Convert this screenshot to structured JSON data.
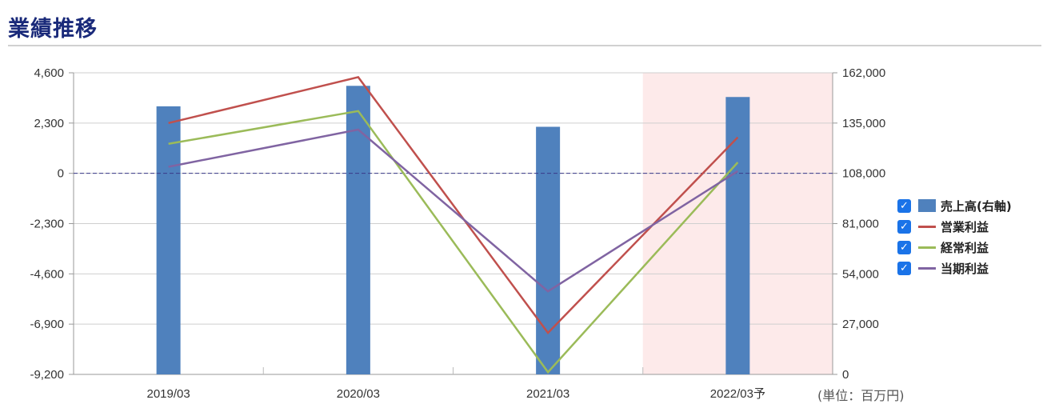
{
  "title": "業績推移",
  "unit_label": "(単位：百万円)",
  "colors": {
    "bar": "#4f81bd",
    "operating": "#c0504d",
    "ordinary": "#9bbb59",
    "net": "#8064a2",
    "forecast_band": "#fdeaea",
    "zero_line": "#3a3a8a",
    "checkbox": "#1a73e8"
  },
  "legend": [
    {
      "label": "売上高(右軸)",
      "swatch": "bar",
      "checked": true
    },
    {
      "label": "営業利益",
      "swatch": "operating",
      "checked": true
    },
    {
      "label": "経常利益",
      "swatch": "ordinary",
      "checked": true
    },
    {
      "label": "当期利益",
      "swatch": "net",
      "checked": true
    }
  ],
  "chart_data": {
    "type": "bar",
    "categories": [
      "2019/03",
      "2020/03",
      "2021/03",
      "2022/03予"
    ],
    "forecast_index": 3,
    "left_axis": {
      "ticks": [
        "4,600",
        "2,300",
        "0",
        "-2,300",
        "-4,600",
        "-6,900",
        "-9,200"
      ],
      "ylim": [
        -9200,
        4600
      ]
    },
    "right_axis": {
      "ticks": [
        "162,000",
        "135,000",
        "108,000",
        "81,000",
        "54,000",
        "27,000",
        "0"
      ],
      "ylim": [
        0,
        162000
      ]
    },
    "bar_series": {
      "name": "売上高(右軸)",
      "axis": "right",
      "values": [
        144000,
        155000,
        133000,
        149000
      ]
    },
    "line_series": [
      {
        "name": "営業利益",
        "axis": "left",
        "color_key": "operating",
        "values": [
          2300,
          4400,
          -7300,
          1650
        ]
      },
      {
        "name": "経常利益",
        "axis": "left",
        "color_key": "ordinary",
        "values": [
          1350,
          2850,
          -9100,
          500
        ]
      },
      {
        "name": "当期利益",
        "axis": "left",
        "color_key": "net",
        "values": [
          300,
          2000,
          -5400,
          100
        ]
      }
    ],
    "grid": true,
    "legend_position": "right"
  }
}
